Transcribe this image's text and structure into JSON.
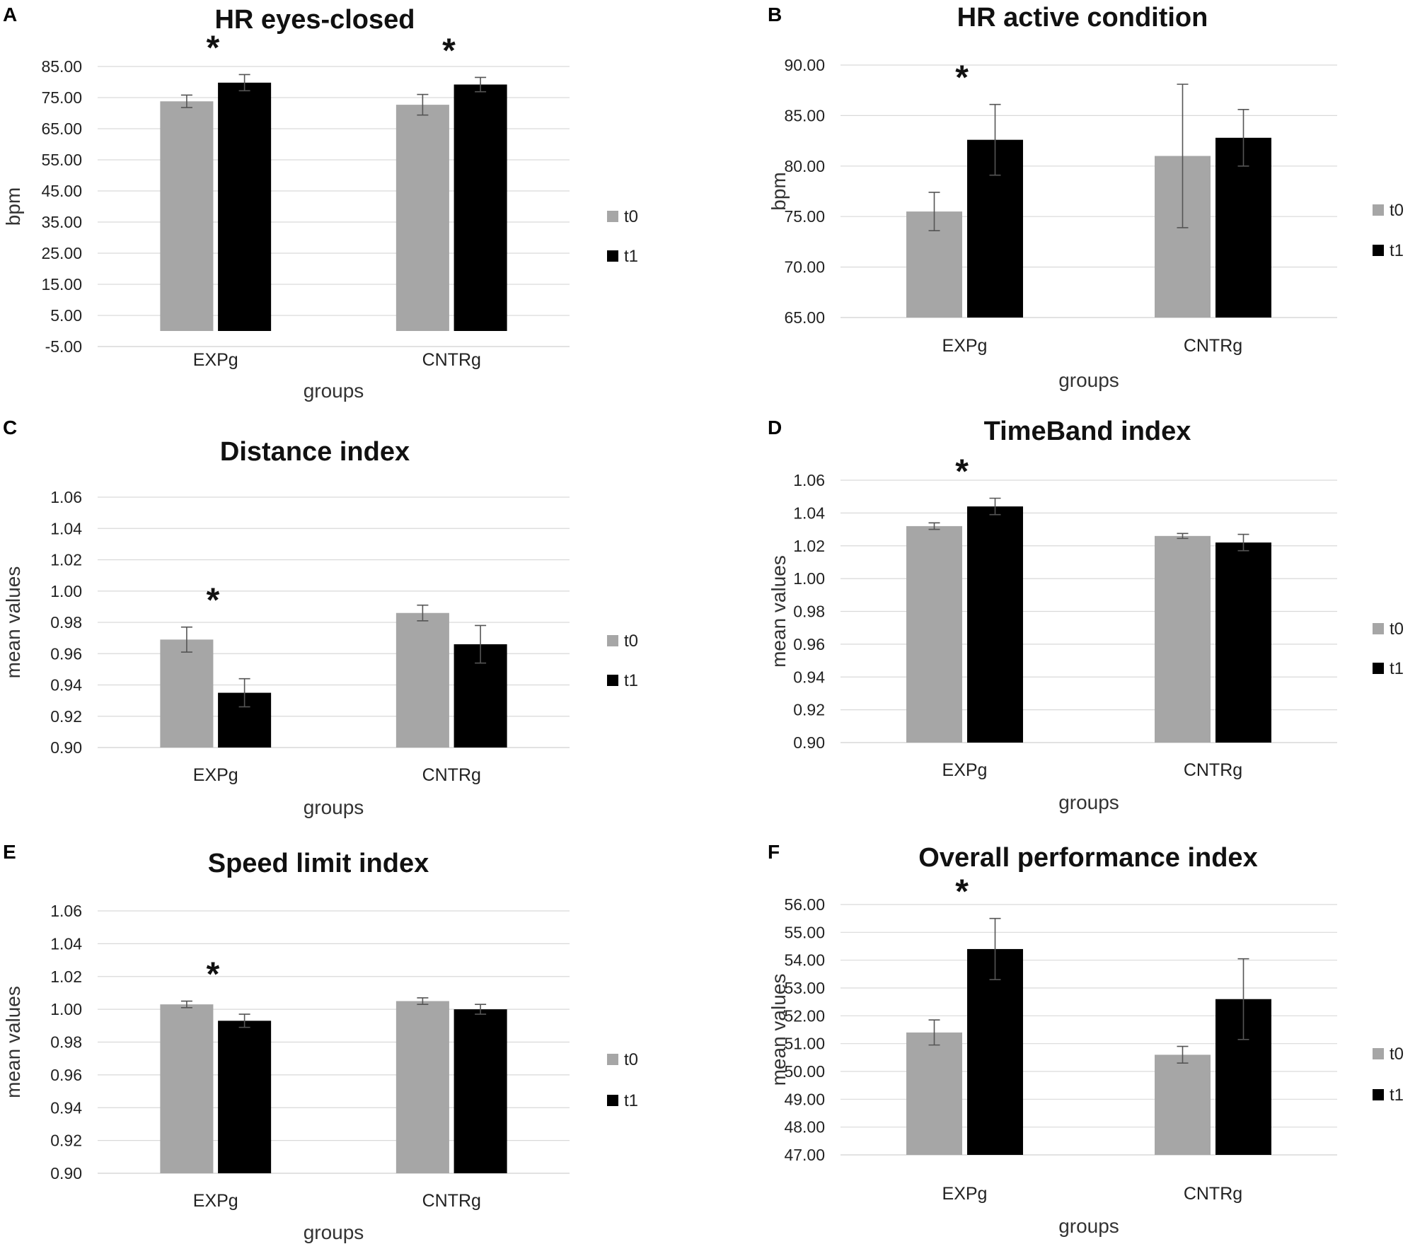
{
  "colors": {
    "t0": "#a6a6a6",
    "t1": "#000000"
  },
  "chart_data": [
    {
      "panel": "A",
      "type": "bar",
      "title": "HR eyes-closed",
      "xlabel": "groups",
      "ylabel": "bpm",
      "ylim": [
        -5,
        85
      ],
      "yticks": [
        "85.00",
        "75.00",
        "65.00",
        "55.00",
        "45.00",
        "35.00",
        "25.00",
        "15.00",
        "5.00",
        "-5.00"
      ],
      "categories": [
        "EXPg",
        "CNTRg"
      ],
      "series": [
        {
          "name": "t0",
          "values": [
            73.8,
            72.7
          ],
          "errors": [
            2.0,
            3.3
          ]
        },
        {
          "name": "t1",
          "values": [
            79.8,
            79.2
          ],
          "errors": [
            2.6,
            2.3
          ]
        }
      ],
      "significance": [
        {
          "category": "EXPg",
          "symbol": "*"
        },
        {
          "category": "CNTRg",
          "symbol": "*"
        }
      ],
      "legend": "right"
    },
    {
      "panel": "B",
      "type": "bar",
      "title": "HR active condition",
      "xlabel": "groups",
      "ylabel": "bpm",
      "ylim": [
        65,
        90
      ],
      "yticks": [
        "90.00",
        "85.00",
        "80.00",
        "75.00",
        "70.00",
        "65.00"
      ],
      "categories": [
        "EXPg",
        "CNTRg"
      ],
      "series": [
        {
          "name": "t0",
          "values": [
            75.5,
            81.0
          ],
          "errors": [
            1.9,
            7.1
          ]
        },
        {
          "name": "t1",
          "values": [
            82.6,
            82.8
          ],
          "errors": [
            3.5,
            2.8
          ]
        }
      ],
      "significance": [
        {
          "category": "EXPg",
          "symbol": "*"
        }
      ],
      "legend": "right"
    },
    {
      "panel": "C",
      "type": "bar",
      "title": "Distance index",
      "xlabel": "groups",
      "ylabel": "mean values",
      "ylim": [
        0.9,
        1.06
      ],
      "yticks": [
        "1.06",
        "1.04",
        "1.02",
        "1.00",
        "0.98",
        "0.96",
        "0.94",
        "0.92",
        "0.90"
      ],
      "categories": [
        "EXPg",
        "CNTRg"
      ],
      "series": [
        {
          "name": "t0",
          "values": [
            0.969,
            0.986
          ],
          "errors": [
            0.008,
            0.005
          ]
        },
        {
          "name": "t1",
          "values": [
            0.935,
            0.966
          ],
          "errors": [
            0.009,
            0.012
          ]
        }
      ],
      "significance": [
        {
          "category": "EXPg",
          "symbol": "*"
        }
      ],
      "legend": "right"
    },
    {
      "panel": "D",
      "type": "bar",
      "title": "TimeBand index",
      "xlabel": "groups",
      "ylabel": "mean values",
      "ylim": [
        0.9,
        1.06
      ],
      "yticks": [
        "1.06",
        "1.04",
        "1.02",
        "1.00",
        "0.98",
        "0.96",
        "0.94",
        "0.92",
        "0.90"
      ],
      "categories": [
        "EXPg",
        "CNTRg"
      ],
      "series": [
        {
          "name": "t0",
          "values": [
            1.032,
            1.026
          ],
          "errors": [
            0.002,
            0.0015
          ]
        },
        {
          "name": "t1",
          "values": [
            1.044,
            1.022
          ],
          "errors": [
            0.005,
            0.005
          ]
        }
      ],
      "significance": [
        {
          "category": "EXPg",
          "symbol": "*"
        }
      ],
      "legend": "right"
    },
    {
      "panel": "E",
      "type": "bar",
      "title": "Speed limit index",
      "xlabel": "groups",
      "ylabel": "mean values",
      "ylim": [
        0.9,
        1.06
      ],
      "yticks": [
        "1.06",
        "1.04",
        "1.02",
        "1.00",
        "0.98",
        "0.96",
        "0.94",
        "0.92",
        "0.90"
      ],
      "categories": [
        "EXPg",
        "CNTRg"
      ],
      "series": [
        {
          "name": "t0",
          "values": [
            1.003,
            1.005
          ],
          "errors": [
            0.002,
            0.002
          ]
        },
        {
          "name": "t1",
          "values": [
            0.993,
            1.0
          ],
          "errors": [
            0.004,
            0.003
          ]
        }
      ],
      "significance": [
        {
          "category": "EXPg",
          "symbol": "*"
        }
      ],
      "legend": "right"
    },
    {
      "panel": "F",
      "type": "bar",
      "title": "Overall performance index",
      "xlabel": "groups",
      "ylabel": "mean values",
      "ylim": [
        47,
        56
      ],
      "yticks": [
        "56.00",
        "55.00",
        "54.00",
        "53.00",
        "52.00",
        "51.00",
        "50.00",
        "49.00",
        "48.00",
        "47.00"
      ],
      "categories": [
        "EXPg",
        "CNTRg"
      ],
      "series": [
        {
          "name": "t0",
          "values": [
            51.4,
            50.6
          ],
          "errors": [
            0.45,
            0.3
          ]
        },
        {
          "name": "t1",
          "values": [
            54.4,
            52.6
          ],
          "errors": [
            1.1,
            1.45
          ]
        }
      ],
      "significance": [
        {
          "category": "EXPg",
          "symbol": "*"
        }
      ],
      "legend": "right"
    }
  ]
}
